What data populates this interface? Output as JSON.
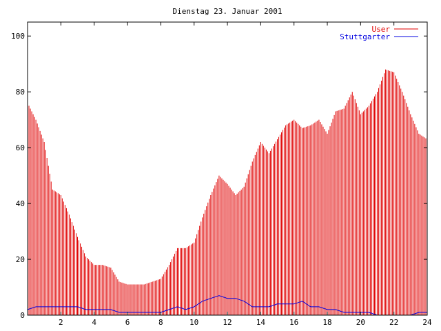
{
  "chart_data": {
    "type": "bar",
    "title": "Dienstag 23. Januar 2001",
    "xlim": [
      0,
      24
    ],
    "ylim": [
      0,
      105
    ],
    "x_ticks": [
      2,
      4,
      6,
      8,
      10,
      12,
      14,
      16,
      18,
      20,
      22,
      24
    ],
    "y_ticks": [
      0,
      20,
      40,
      60,
      80,
      100
    ],
    "grid": false,
    "legend_position": "top-right",
    "colors": {
      "User": "#e00000",
      "Stuttgarter": "#0000e0"
    },
    "series": [
      {
        "name": "User",
        "style": "impulses",
        "points": [
          [
            0,
            76
          ],
          [
            0.5,
            70
          ],
          [
            1,
            62
          ],
          [
            1.5,
            45
          ],
          [
            2,
            43
          ],
          [
            2.5,
            36
          ],
          [
            3,
            28
          ],
          [
            3.5,
            21
          ],
          [
            4,
            18
          ],
          [
            4.5,
            18
          ],
          [
            5,
            17
          ],
          [
            5.5,
            12
          ],
          [
            6,
            11
          ],
          [
            6.5,
            11
          ],
          [
            7,
            11
          ],
          [
            7.5,
            12
          ],
          [
            8,
            13
          ],
          [
            8.5,
            18
          ],
          [
            9,
            24
          ],
          [
            9.5,
            24
          ],
          [
            10,
            26
          ],
          [
            10.5,
            35
          ],
          [
            11,
            43
          ],
          [
            11.5,
            50
          ],
          [
            12,
            47
          ],
          [
            12.5,
            43
          ],
          [
            13,
            46
          ],
          [
            13.5,
            55
          ],
          [
            14,
            62
          ],
          [
            14.5,
            58
          ],
          [
            15,
            63
          ],
          [
            15.5,
            68
          ],
          [
            16,
            70
          ],
          [
            16.5,
            67
          ],
          [
            17,
            68
          ],
          [
            17.5,
            70
          ],
          [
            18,
            65
          ],
          [
            18.5,
            73
          ],
          [
            19,
            74
          ],
          [
            19.5,
            80
          ],
          [
            20,
            72
          ],
          [
            20.5,
            75
          ],
          [
            21,
            80
          ],
          [
            21.5,
            88
          ],
          [
            22,
            87
          ],
          [
            22.5,
            80
          ],
          [
            23,
            72
          ],
          [
            23.5,
            65
          ],
          [
            24,
            63
          ]
        ]
      },
      {
        "name": "Stuttgarter",
        "style": "lines",
        "points": [
          [
            0,
            2
          ],
          [
            0.5,
            3
          ],
          [
            1,
            3
          ],
          [
            1.5,
            3
          ],
          [
            2,
            3
          ],
          [
            2.5,
            3
          ],
          [
            3,
            3
          ],
          [
            3.5,
            2
          ],
          [
            4,
            2
          ],
          [
            4.5,
            2
          ],
          [
            5,
            2
          ],
          [
            5.5,
            1
          ],
          [
            6,
            1
          ],
          [
            6.5,
            1
          ],
          [
            7,
            1
          ],
          [
            7.5,
            1
          ],
          [
            8,
            1
          ],
          [
            8.5,
            2
          ],
          [
            9,
            3
          ],
          [
            9.5,
            2
          ],
          [
            10,
            3
          ],
          [
            10.5,
            5
          ],
          [
            11,
            6
          ],
          [
            11.5,
            7
          ],
          [
            12,
            6
          ],
          [
            12.5,
            6
          ],
          [
            13,
            5
          ],
          [
            13.5,
            3
          ],
          [
            14,
            3
          ],
          [
            14.5,
            3
          ],
          [
            15,
            4
          ],
          [
            15.5,
            4
          ],
          [
            16,
            4
          ],
          [
            16.5,
            5
          ],
          [
            17,
            3
          ],
          [
            17.5,
            3
          ],
          [
            18,
            2
          ],
          [
            18.5,
            2
          ],
          [
            19,
            1
          ],
          [
            19.5,
            1
          ],
          [
            20,
            1
          ],
          [
            20.5,
            1
          ],
          [
            21,
            0
          ],
          [
            21.5,
            0
          ],
          [
            22,
            0
          ],
          [
            22.5,
            0
          ],
          [
            23,
            0
          ],
          [
            23.5,
            1
          ],
          [
            24,
            1
          ]
        ]
      }
    ]
  }
}
